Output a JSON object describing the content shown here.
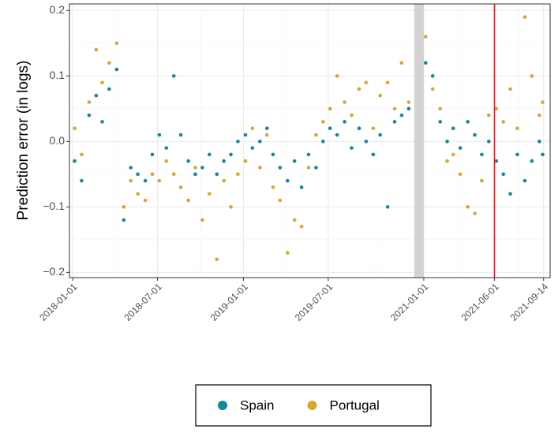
{
  "chart_data": {
    "type": "scatter",
    "ylabel": "Prediction error (in logs)",
    "x": [
      "2018-01-05",
      "2018-01-20",
      "2018-02-05",
      "2018-02-20",
      "2018-03-05",
      "2018-03-20",
      "2018-04-05",
      "2018-04-20",
      "2018-05-05",
      "2018-05-20",
      "2018-06-05",
      "2018-06-20",
      "2018-07-05",
      "2018-07-20",
      "2018-08-05",
      "2018-08-20",
      "2018-09-05",
      "2018-09-20",
      "2018-10-05",
      "2018-10-20",
      "2018-11-05",
      "2018-11-20",
      "2018-12-05",
      "2018-12-20",
      "2019-01-05",
      "2019-01-20",
      "2019-02-05",
      "2019-02-20",
      "2019-03-05",
      "2019-03-20",
      "2019-04-05",
      "2019-04-20",
      "2019-05-05",
      "2019-05-20",
      "2019-06-05",
      "2019-06-20",
      "2019-07-05",
      "2019-07-20",
      "2019-08-05",
      "2019-08-20",
      "2019-09-05",
      "2019-09-20",
      "2019-10-05",
      "2019-10-20",
      "2019-11-05",
      "2019-11-20",
      "2019-12-05",
      "2019-12-20",
      "2021-01-05",
      "2021-01-20",
      "2021-02-05",
      "2021-02-20",
      "2021-03-05",
      "2021-03-20",
      "2021-04-05",
      "2021-04-20",
      "2021-05-05",
      "2021-05-20",
      "2021-06-05",
      "2021-06-20",
      "2021-07-05",
      "2021-07-20",
      "2021-08-05",
      "2021-08-20",
      "2021-09-05",
      "2021-09-12"
    ],
    "series": [
      {
        "name": "Spain",
        "color": "#10899a",
        "values": [
          -0.03,
          -0.06,
          0.04,
          0.07,
          0.03,
          0.08,
          0.11,
          -0.12,
          -0.04,
          -0.05,
          -0.06,
          -0.02,
          0.01,
          -0.01,
          0.1,
          0.01,
          -0.03,
          -0.05,
          -0.04,
          -0.02,
          -0.05,
          -0.03,
          -0.02,
          0.0,
          0.01,
          -0.01,
          0.0,
          0.02,
          -0.02,
          -0.04,
          -0.06,
          -0.03,
          -0.07,
          -0.02,
          -0.04,
          0.0,
          0.02,
          0.01,
          0.03,
          -0.01,
          0.02,
          0.0,
          -0.02,
          0.01,
          -0.1,
          0.03,
          0.04,
          0.05,
          0.12,
          0.1,
          0.03,
          0.0,
          0.02,
          -0.01,
          0.03,
          0.01,
          -0.02,
          0.0,
          -0.03,
          -0.05,
          -0.08,
          -0.02,
          -0.06,
          -0.03,
          0.0,
          -0.02
        ]
      },
      {
        "name": "Portugal",
        "color": "#dba62d",
        "values": [
          0.02,
          -0.02,
          0.06,
          0.14,
          0.09,
          0.12,
          0.15,
          -0.1,
          -0.06,
          -0.08,
          -0.09,
          -0.05,
          -0.06,
          -0.03,
          -0.05,
          -0.07,
          -0.09,
          -0.04,
          -0.12,
          -0.08,
          -0.18,
          -0.06,
          -0.1,
          -0.05,
          -0.03,
          0.02,
          -0.04,
          0.01,
          -0.07,
          -0.09,
          -0.17,
          -0.12,
          -0.13,
          -0.04,
          0.01,
          0.03,
          0.05,
          0.1,
          0.06,
          0.04,
          0.08,
          0.09,
          0.02,
          0.07,
          0.09,
          0.05,
          0.12,
          0.06,
          0.16,
          0.08,
          0.05,
          -0.03,
          -0.02,
          -0.05,
          -0.1,
          -0.11,
          -0.06,
          0.04,
          0.05,
          0.03,
          0.08,
          0.02,
          0.19,
          0.1,
          0.04,
          0.06
        ]
      }
    ],
    "xlim": [
      "2017-12-25",
      "2021-09-28"
    ],
    "xticks": [
      "2018-01-01",
      "2018-07-01",
      "2019-01-01",
      "2019-07-01",
      "2021-01-01",
      "2021-06-01",
      "2021-09-14"
    ],
    "ylim": [
      -0.208,
      0.21
    ],
    "yticks": [
      {
        "value": -0.2,
        "label": "−0.2"
      },
      {
        "value": -0.1,
        "label": "−0.1"
      },
      {
        "value": 0,
        "label": "0.0"
      },
      0.1,
      0.2
    ],
    "shaded": {
      "range": [
        "2020-01-01",
        "2021-01-01"
      ],
      "color": "#d3d3d3"
    },
    "vline": {
      "x": "2021-06-01",
      "color": "#e41a1c"
    },
    "grid": true,
    "legend": "bottom"
  }
}
